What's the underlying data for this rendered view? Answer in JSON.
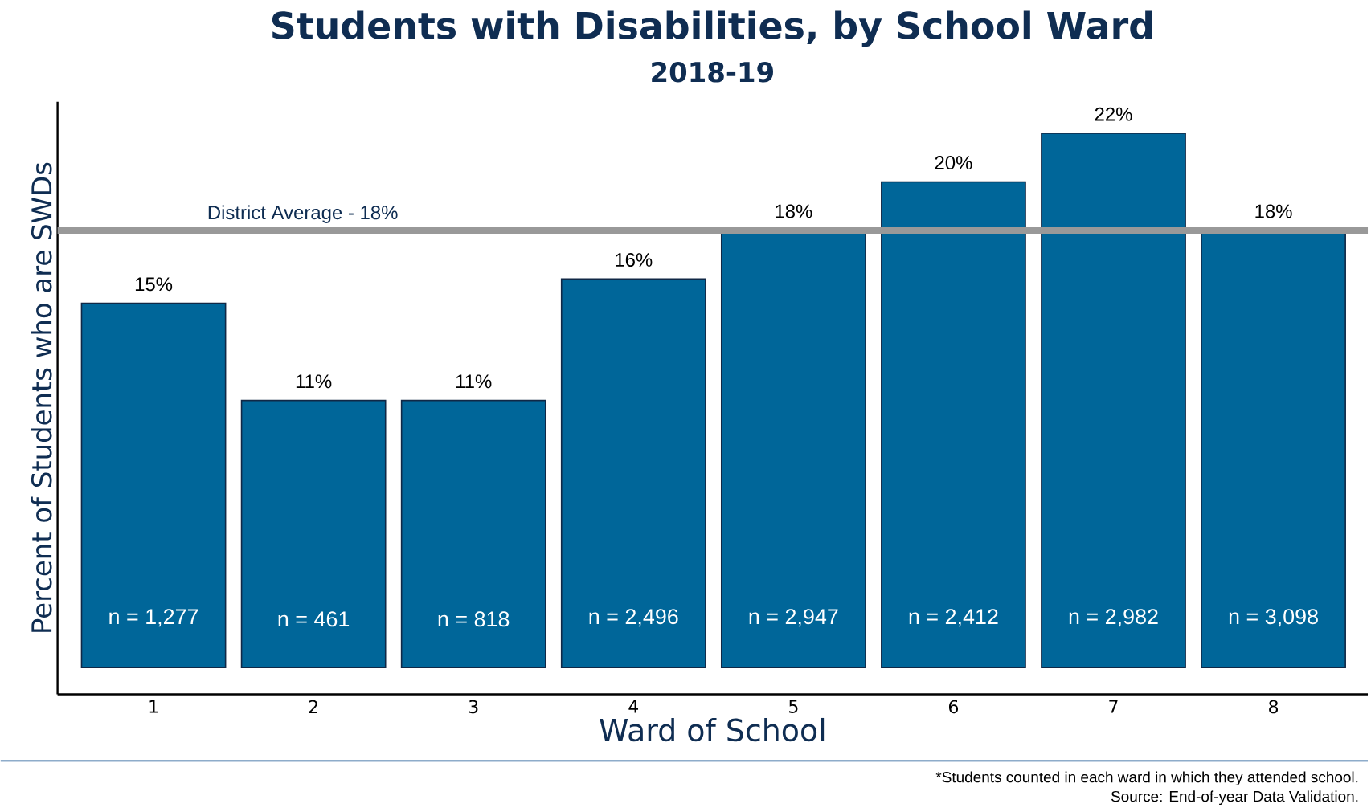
{
  "chart_data": {
    "type": "bar",
    "title": "Students with Disabilities, by School Ward",
    "subtitle": "2018-19",
    "xlabel": "Ward of School",
    "ylabel": "Percent of Students who are SWDs",
    "categories": [
      "1",
      "2",
      "3",
      "4",
      "5",
      "6",
      "7",
      "8"
    ],
    "values": [
      15,
      11,
      11,
      16,
      18,
      20,
      22,
      18
    ],
    "value_labels": [
      "15%",
      "11%",
      "11%",
      "16%",
      "18%",
      "20%",
      "22%",
      "18%"
    ],
    "color": "#006699",
    "ylim": [
      -1.1,
      23.3
    ],
    "tick_labels": "x",
    "grid": false,
    "ref_lines": [
      {
        "axis": "y",
        "value": 18,
        "label": "District Average - 18%",
        "color": "#999999"
      }
    ],
    "annotations": [
      "n = 1,277",
      "n = 461",
      "n = 818",
      "n = 2,496",
      "n = 2,947",
      "n = 2,412",
      "n = 2,982",
      "n = 3,098",
      "*Students counted in each ward in which they attended school.",
      "Source: End-of-year Data Validation."
    ]
  }
}
